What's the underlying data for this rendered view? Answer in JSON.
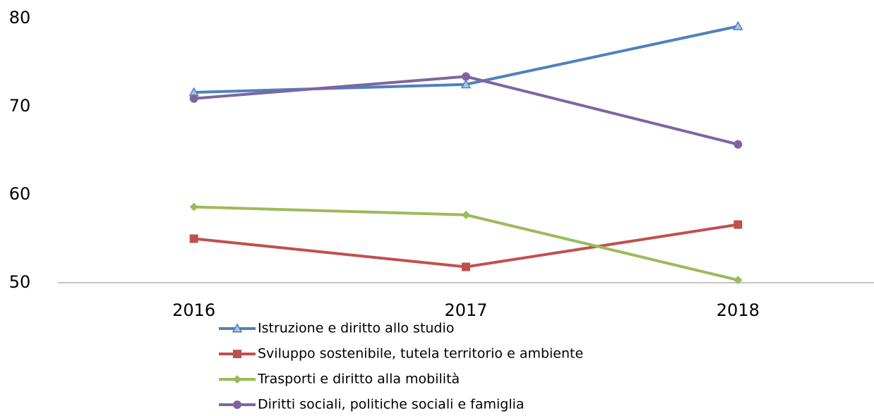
{
  "chart_data": {
    "type": "line",
    "categories": [
      "2016",
      "2017",
      "2018"
    ],
    "series": [
      {
        "name": "Istruzione e diritto allo studio",
        "color": "#4f81bd",
        "marker": "triangle",
        "values": [
          71.6,
          72.5,
          79.1
        ]
      },
      {
        "name": "Sviluppo sostenibile, tutela territorio e ambiente",
        "color": "#c0504d",
        "marker": "square",
        "values": [
          55.0,
          51.8,
          56.6
        ]
      },
      {
        "name": "Trasporti e diritto alla mobilità",
        "color": "#9bbb59",
        "marker": "diamond",
        "values": [
          58.6,
          57.7,
          50.3
        ]
      },
      {
        "name": "Diritti sociali, politiche sociali e famiglia",
        "color": "#8064a2",
        "marker": "circle",
        "values": [
          70.9,
          73.4,
          65.7
        ]
      }
    ],
    "ylim": [
      50,
      80
    ],
    "yticks": [
      50,
      60,
      70,
      80
    ],
    "grid": false,
    "legend": "bottom"
  }
}
